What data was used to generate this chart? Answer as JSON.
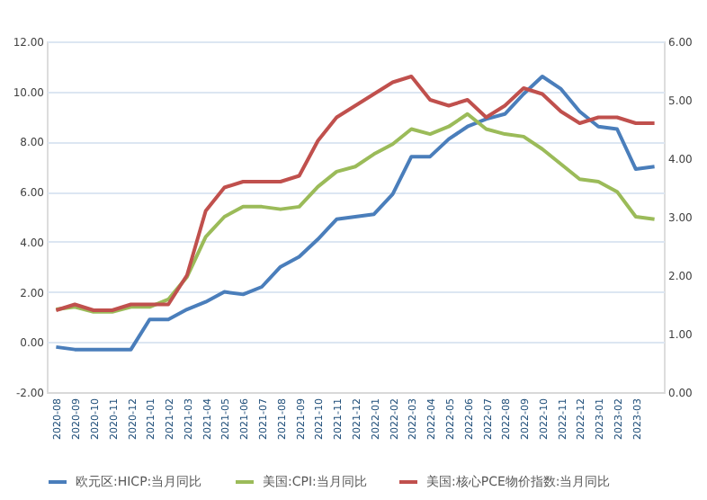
{
  "chart_data": {
    "type": "line",
    "categories": [
      "2020-08",
      "2020-09",
      "2020-10",
      "2020-11",
      "2020-12",
      "2021-01",
      "2021-02",
      "2021-03",
      "2021-04",
      "2021-05",
      "2021-06",
      "2021-07",
      "2021-08",
      "2021-09",
      "2021-10",
      "2021-11",
      "2021-12",
      "2022-01",
      "2022-02",
      "2022-03",
      "2022-04",
      "2022-05",
      "2022-06",
      "2022-07",
      "2022-08",
      "2022-09",
      "2022-10",
      "2022-11",
      "2022-12",
      "2023-01",
      "2023-02",
      "2023-03",
      null
    ],
    "series": [
      {
        "name": "欧元区:HICP:当月同比",
        "color": "#4a7ebb",
        "values": [
          -0.2,
          -0.3,
          -0.3,
          -0.3,
          -0.3,
          0.9,
          0.9,
          1.3,
          1.6,
          2.0,
          1.9,
          2.2,
          3.0,
          3.4,
          4.1,
          4.9,
          5.0,
          5.1,
          5.9,
          7.4,
          7.4,
          8.1,
          8.6,
          8.9,
          9.1,
          9.9,
          10.6,
          10.1,
          9.2,
          8.6,
          8.5,
          6.9,
          7.0
        ]
      },
      {
        "name": "美国:CPI:当月同比",
        "color": "#9bbb59",
        "values": [
          1.3,
          1.4,
          1.2,
          1.2,
          1.4,
          1.4,
          1.7,
          2.6,
          4.2,
          5.0,
          5.4,
          5.4,
          5.3,
          5.4,
          6.2,
          6.8,
          7.0,
          7.5,
          7.9,
          8.5,
          8.3,
          8.6,
          9.1,
          8.5,
          8.3,
          8.2,
          7.7,
          7.1,
          6.5,
          6.4,
          6.0,
          5.0,
          4.9
        ]
      },
      {
        "name": "美国:核心PCE物价指数:当月同比",
        "color": "#c0504d",
        "axis": "y2",
        "values": [
          1.4,
          1.5,
          1.4,
          1.4,
          1.5,
          1.5,
          1.5,
          2.0,
          3.1,
          3.5,
          3.6,
          3.6,
          3.6,
          3.7,
          4.3,
          4.7,
          4.9,
          5.1,
          5.3,
          5.4,
          5.0,
          4.9,
          5.0,
          4.7,
          4.9,
          5.2,
          5.1,
          4.8,
          4.6,
          4.7,
          4.7,
          4.6,
          4.6
        ]
      }
    ],
    "ylim": [
      -2,
      12
    ],
    "yticks": [
      {
        "value": -2,
        "label": "-2.00"
      },
      {
        "value": 0,
        "label": "0.00"
      },
      {
        "value": 2,
        "label": "2.00"
      },
      {
        "value": 4,
        "label": "4.00"
      },
      {
        "value": 6,
        "label": "6.00"
      },
      {
        "value": 8,
        "label": "8.00"
      },
      {
        "value": 10,
        "label": "10.00"
      },
      {
        "value": 12,
        "label": "12.00"
      }
    ],
    "y2lim": [
      0,
      6
    ],
    "y2ticks": [
      {
        "value": 0,
        "label": "0.00"
      },
      {
        "value": 1,
        "label": "1.00"
      },
      {
        "value": 2,
        "label": "2.00"
      },
      {
        "value": 3,
        "label": "3.00"
      },
      {
        "value": 4,
        "label": "4.00"
      },
      {
        "value": 5,
        "label": "5.00"
      },
      {
        "value": 6,
        "label": "6.00"
      }
    ],
    "grid": "y",
    "legend": "bottom"
  }
}
